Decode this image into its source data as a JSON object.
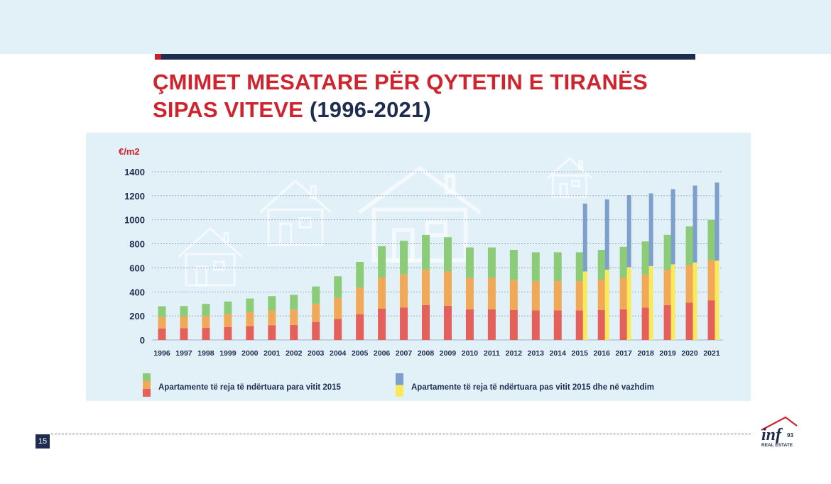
{
  "title": {
    "main_line1": "ÇMIMET MESATARE PËR QYTETIN E TIRANËS",
    "main_line2": "SIPAS VITEVE",
    "years": "(1996-2021)"
  },
  "page_number": "15",
  "logo": {
    "brand": "inf",
    "number": "93",
    "tagline": "REAL ESTATE"
  },
  "colors": {
    "title_red": "#d0232d",
    "navy": "#1e2d4f",
    "panel": "#e2f1f8",
    "red_segment": "#e5605a",
    "orange_segment": "#f1a957",
    "green_segment": "#8ccb78",
    "blue_segment": "#7d9fcc",
    "yellow_segment": "#f8ea5a"
  },
  "chart_data": {
    "type": "bar",
    "stacked": true,
    "ylabel": "€/m2",
    "ylim": [
      0,
      1400
    ],
    "yticks": [
      0,
      200,
      400,
      600,
      800,
      1000,
      1200,
      1400
    ],
    "grid": true,
    "categories": [
      "1996",
      "1997",
      "1998",
      "1999",
      "2000",
      "2001",
      "2002",
      "2003",
      "2004",
      "2005",
      "2006",
      "2007",
      "2008",
      "2009",
      "2010",
      "2011",
      "2012",
      "2013",
      "2014",
      "2015",
      "2016",
      "2017",
      "2018",
      "2019",
      "2020",
      "2021"
    ],
    "groups": [
      {
        "name": "Apartamente të reja të ndërtuara para vitit 2015",
        "segment_colors": [
          "#e5605a",
          "#f1a957",
          "#8ccb78"
        ],
        "segments": [
          [
            95,
            98,
            100,
            108,
            115,
            122,
            125,
            150,
            175,
            215,
            260,
            270,
            290,
            285,
            255,
            255,
            250,
            245,
            245,
            245,
            250,
            255,
            270,
            290,
            310,
            330
          ],
          [
            95,
            97,
            100,
            107,
            115,
            123,
            125,
            150,
            175,
            220,
            260,
            275,
            295,
            285,
            260,
            262,
            250,
            245,
            245,
            245,
            252,
            262,
            275,
            295,
            313,
            335
          ],
          [
            90,
            87,
            100,
            105,
            115,
            120,
            125,
            145,
            180,
            215,
            260,
            280,
            290,
            285,
            255,
            253,
            250,
            240,
            240,
            240,
            248,
            258,
            275,
            290,
            322,
            335
          ]
        ]
      },
      {
        "name": "Apartamente të reja të ndërtuara pas vitit 2015 dhe në vazhdim",
        "segment_colors": [
          "#f8ea5a",
          "#7d9fcc"
        ],
        "categories": [
          "2015",
          "2016",
          "2017",
          "2018",
          "2019",
          "2020",
          "2021"
        ],
        "segments": [
          [
            570,
            585,
            605,
            615,
            630,
            645,
            660
          ],
          [
            565,
            585,
            600,
            605,
            625,
            640,
            650
          ]
        ]
      }
    ]
  }
}
